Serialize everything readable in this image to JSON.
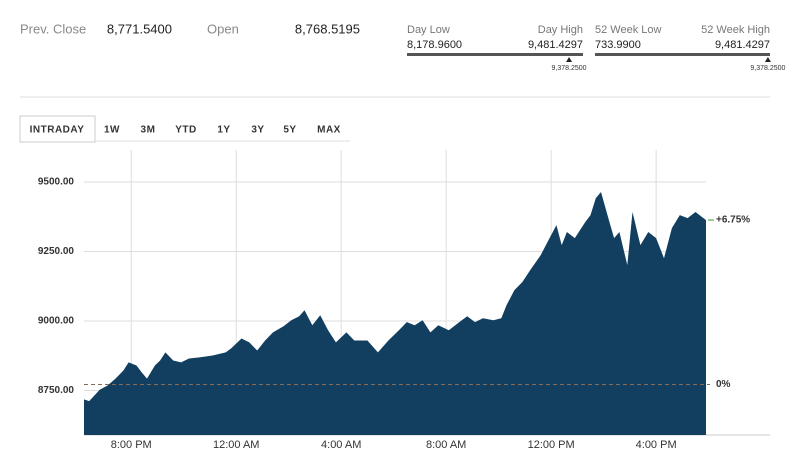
{
  "quote": {
    "prev_close": {
      "label": "Prev. Close",
      "value": "8,771.5400"
    },
    "open": {
      "label": "Open",
      "value": "8,768.5195"
    }
  },
  "ranges": [
    {
      "low_label": "Day Low",
      "high_label": "Day High",
      "low": {
        "value": 8178.96,
        "label": "8,178.9600"
      },
      "high": {
        "value": 9481.4297,
        "label": "9,481.4297"
      },
      "current": {
        "value": 9378.25,
        "label": "9,378.2500"
      }
    },
    {
      "low_label": "52 Week Low",
      "high_label": "52 Week High",
      "low": {
        "value": 733.99,
        "label": "733.9900"
      },
      "high": {
        "value": 9481.4297,
        "label": "9,481.4297"
      },
      "current": {
        "value": 9378.25,
        "label": "9,378.2500"
      }
    }
  ],
  "tabs": [
    "INTRADAY",
    "1W",
    "3M",
    "YTD",
    "1Y",
    "3Y",
    "5Y",
    "MAX"
  ],
  "chart_data": {
    "type": "area",
    "color": "#123f60",
    "x": [
      18.2,
      18.4,
      18.8,
      19.1,
      19.4,
      19.7,
      19.9,
      20.2,
      20.4,
      20.6,
      20.9,
      21.1,
      21.3,
      21.6,
      21.9,
      22.2,
      22.6,
      23.1,
      23.6,
      23.8,
      24.2,
      24.5,
      24.8,
      25.1,
      25.4,
      25.8,
      26.1,
      26.4,
      26.6,
      26.9,
      27.2,
      27.5,
      27.8,
      28.2,
      28.5,
      29.0,
      29.4,
      29.8,
      30.2,
      30.5,
      30.8,
      31.1,
      31.4,
      31.7,
      32.1,
      32.5,
      32.8,
      33.1,
      33.4,
      33.8,
      34.1,
      34.3,
      34.6,
      34.9,
      35.2,
      35.6,
      35.9,
      36.2,
      36.4,
      36.6,
      36.9,
      37.3,
      37.5,
      37.7,
      37.9,
      38.2,
      38.4,
      38.6,
      38.9,
      39.1,
      39.4,
      39.7,
      40.0,
      40.3,
      40.6,
      40.9,
      41.2,
      41.5,
      41.9
    ],
    "values": [
      8718,
      8712,
      8753,
      8768,
      8793,
      8822,
      8851,
      8840,
      8815,
      8793,
      8840,
      8858,
      8887,
      8858,
      8851,
      8865,
      8869,
      8876,
      8887,
      8901,
      8937,
      8923,
      8894,
      8930,
      8959,
      8981,
      9003,
      9017,
      9039,
      8985,
      9021,
      8967,
      8923,
      8959,
      8930,
      8930,
      8887,
      8930,
      8967,
      8996,
      8985,
      9003,
      8959,
      8985,
      8967,
      8996,
      9017,
      8996,
      9010,
      9003,
      9010,
      9057,
      9111,
      9140,
      9183,
      9237,
      9291,
      9345,
      9273,
      9320,
      9298,
      9356,
      9381,
      9442,
      9464,
      9363,
      9298,
      9320,
      9201,
      9392,
      9273,
      9320,
      9298,
      9226,
      9334,
      9381,
      9370,
      9392,
      9363
    ],
    "xlim": [
      18.2,
      41.9
    ],
    "ylim": [
      8590,
      9615
    ],
    "xticks": [
      {
        "value": 20,
        "label": "8:00 PM"
      },
      {
        "value": 24,
        "label": "12:00 AM"
      },
      {
        "value": 28,
        "label": "4:00 AM"
      },
      {
        "value": 32,
        "label": "8:00 AM"
      },
      {
        "value": 36,
        "label": "12:00 PM"
      },
      {
        "value": 40,
        "label": "4:00 PM"
      }
    ],
    "yticks": [
      {
        "value": 8750,
        "label": "8750.00"
      },
      {
        "value": 9000,
        "label": "9000.00"
      },
      {
        "value": 9250,
        "label": "9250.00"
      },
      {
        "value": 9500,
        "label": "9500.00"
      }
    ],
    "grid": true,
    "baseline": {
      "value": 8771.54,
      "label": "0%",
      "color": "#8a6a55"
    },
    "change_label": "+6.75%",
    "change_color": "#3a9a3a"
  }
}
